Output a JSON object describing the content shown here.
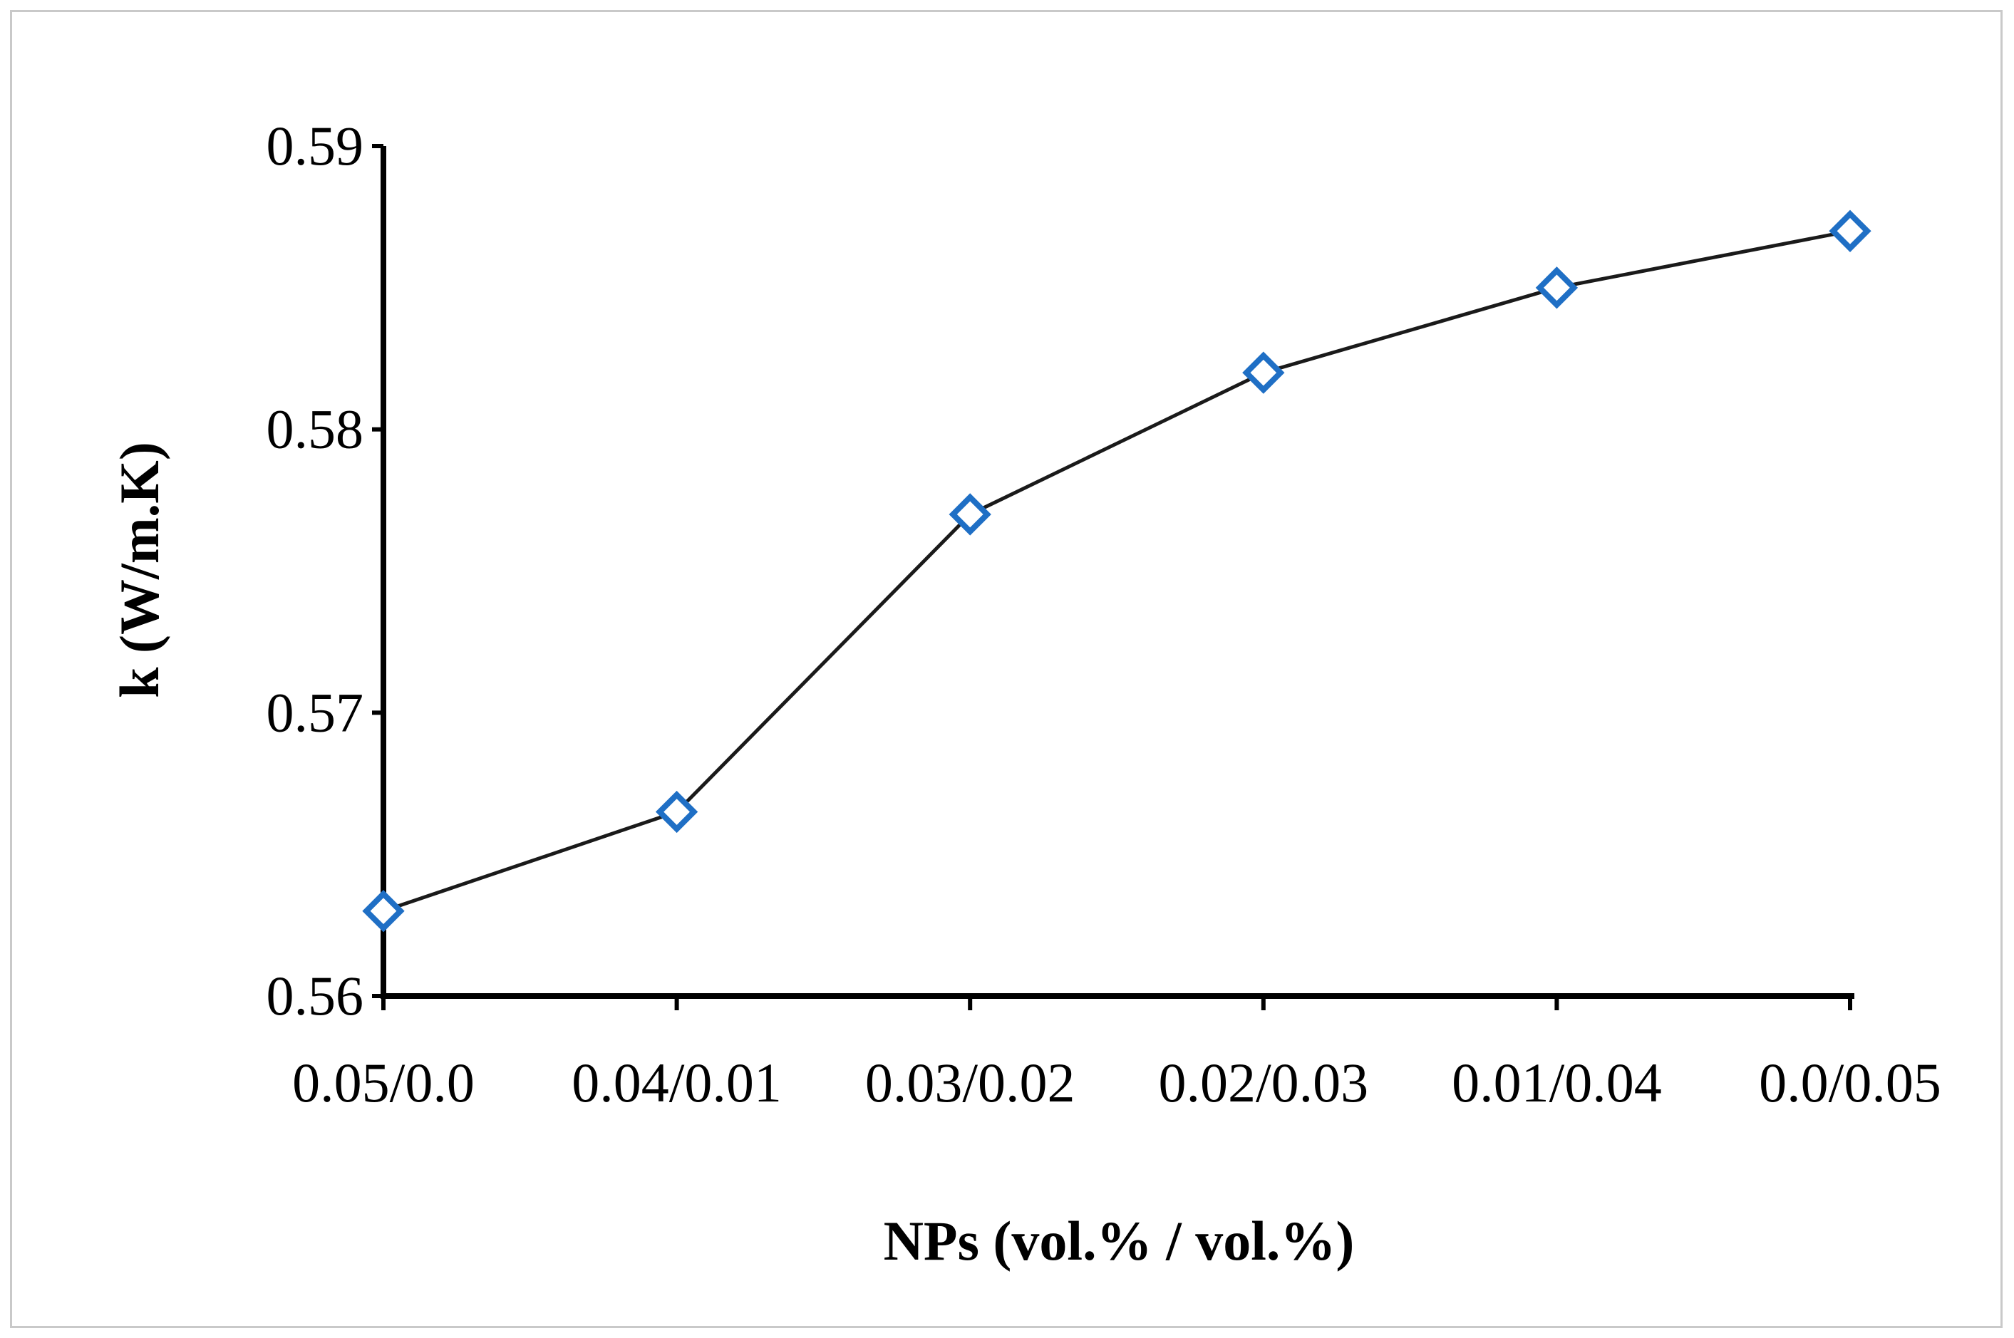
{
  "chart_data": {
    "type": "line",
    "title": "",
    "xlabel": "NPs (vol.% / vol.%)",
    "ylabel": "k (W/m.K)",
    "categories": [
      "0.05/0.0",
      "0.04/0.01",
      "0.03/0.02",
      "0.02/0.03",
      "0.01/0.04",
      "0.0/0.05"
    ],
    "yticks": [
      "0.56",
      "0.57",
      "0.58",
      "0.59"
    ],
    "ylim": [
      0.56,
      0.59
    ],
    "grid": false,
    "legend": "none",
    "series": [
      {
        "values": [
          0.563,
          0.5665,
          0.577,
          0.582,
          0.585,
          0.587
        ],
        "line_color": "#1a1a1a",
        "marker": "diamond-open",
        "marker_color": "#1f6fc5"
      }
    ]
  }
}
